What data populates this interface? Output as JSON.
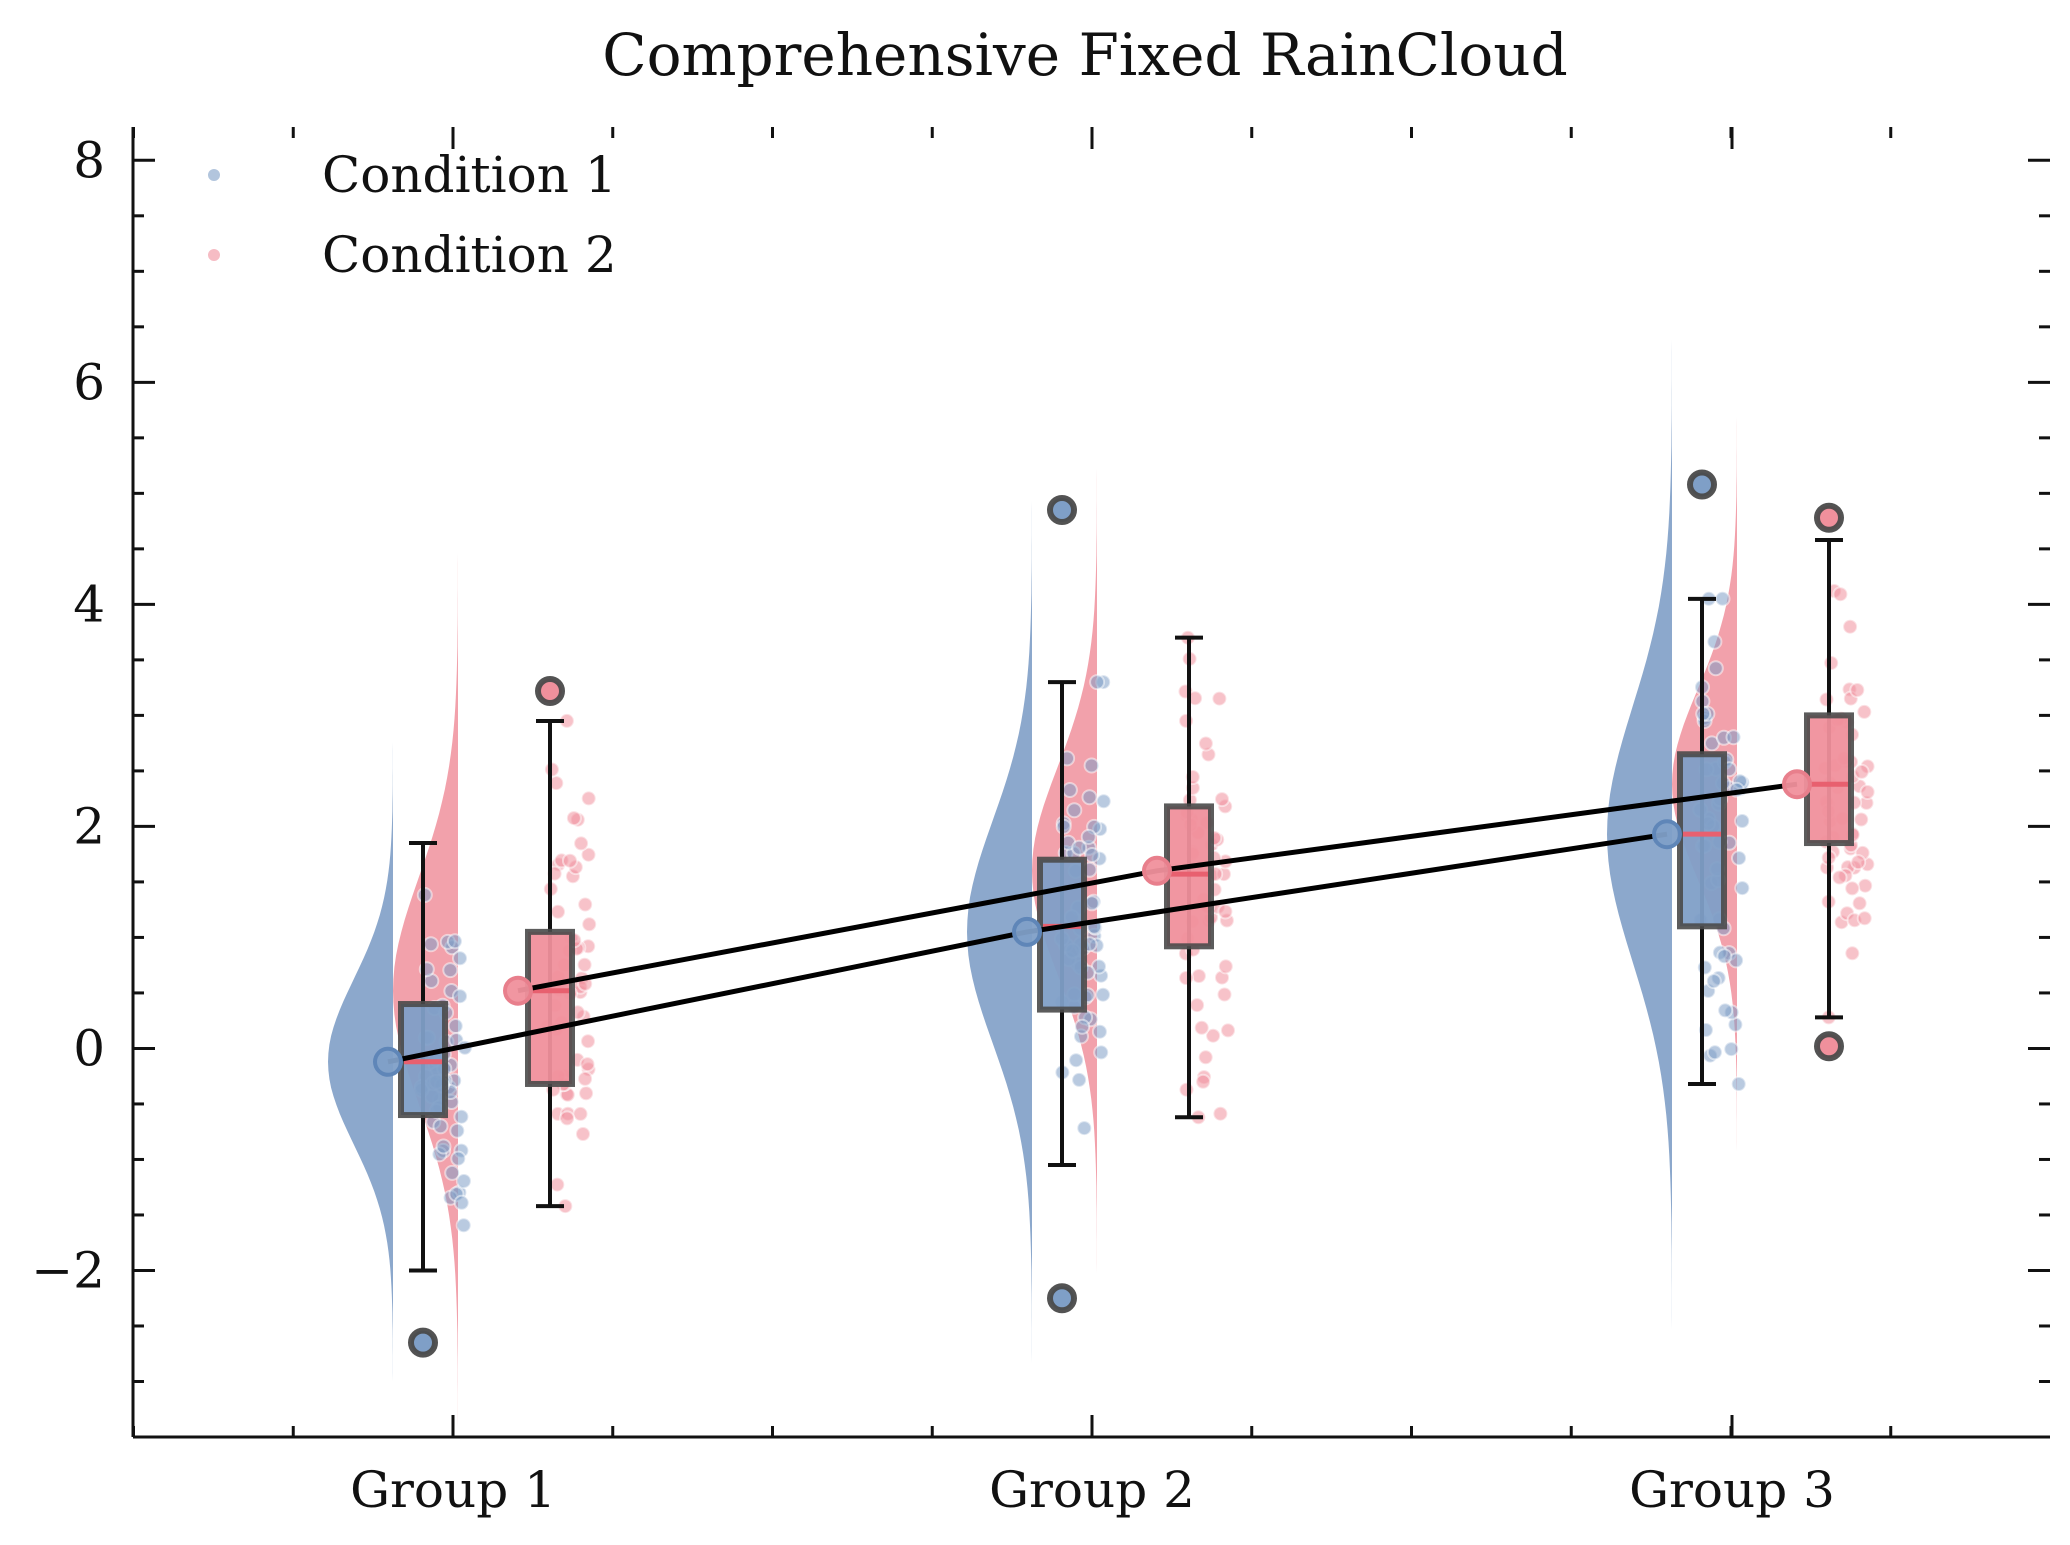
{
  "chart_data": {
    "type": "raincloud",
    "title": "Comprehensive Fixed RainCloud",
    "xlabel": "",
    "ylabel": "",
    "categories": [
      "Group 1",
      "Group 2",
      "Group 3"
    ],
    "ylim": [
      -3.5,
      8.3
    ],
    "yticks": [
      -2,
      0,
      2,
      4,
      6,
      8
    ],
    "grid": false,
    "legend_position": "top-left",
    "colors": {
      "Condition 1": "#7f9fc7",
      "Condition 2": "#f0909c",
      "mean_line": "#000000",
      "median": "#e8606f",
      "box_edge": "#4a4a4a"
    },
    "series": [
      {
        "name": "Condition 1",
        "means": [
          -0.12,
          1.05,
          1.93
        ],
        "box": [
          {
            "q1": -0.6,
            "median": -0.12,
            "q3": 0.4,
            "whisker_low": -2.0,
            "whisker_high": 1.85,
            "outliers": [
              -2.65
            ]
          },
          {
            "q1": 0.35,
            "median": 1.1,
            "q3": 1.7,
            "whisker_low": -1.05,
            "whisker_high": 3.3,
            "outliers": [
              4.85,
              -2.25
            ]
          },
          {
            "q1": 1.1,
            "median": 1.93,
            "q3": 2.65,
            "whisker_low": -0.32,
            "whisker_high": 4.05,
            "outliers": [
              5.08
            ]
          }
        ]
      },
      {
        "name": "Condition 2",
        "means": [
          0.52,
          1.6,
          2.38
        ],
        "box": [
          {
            "q1": -0.32,
            "median": 0.52,
            "q3": 1.05,
            "whisker_low": -1.42,
            "whisker_high": 2.95,
            "outliers": [
              3.22
            ]
          },
          {
            "q1": 0.92,
            "median": 1.57,
            "q3": 2.18,
            "whisker_low": -0.62,
            "whisker_high": 3.7,
            "outliers": []
          },
          {
            "q1": 1.85,
            "median": 2.38,
            "q3": 3.0,
            "whisker_low": 0.28,
            "whisker_high": 4.58,
            "outliers": [
              4.78,
              0.02
            ]
          }
        ]
      }
    ]
  }
}
